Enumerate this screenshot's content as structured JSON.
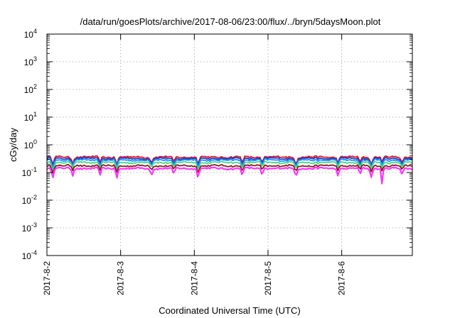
{
  "chart_data": {
    "type": "line",
    "title": "/data/run/goesPlots/archive/2017-08-06/23:00/flux/../bryn/5daysMoon.plot",
    "xlabel": "Coordinated Universal Time (UTC)",
    "ylabel": "cGy/day",
    "y_scale": "log",
    "ylim": [
      0.0001,
      10000
    ],
    "y_ticks": [
      {
        "exp": "-4",
        "value": 0.0001
      },
      {
        "exp": "-3",
        "value": 0.001
      },
      {
        "exp": "-2",
        "value": 0.01
      },
      {
        "exp": "-1",
        "value": 0.1
      },
      {
        "exp": "0",
        "value": 1
      },
      {
        "exp": "1",
        "value": 10
      },
      {
        "exp": "2",
        "value": 100
      },
      {
        "exp": "3",
        "value": 1000
      },
      {
        "exp": "4",
        "value": 10000
      }
    ],
    "y_tick_base": "10",
    "x_ticks": [
      "2017-8-2",
      "2017-8-3",
      "2017-8-4",
      "2017-8-5",
      "2017-8-6"
    ],
    "xlim": [
      "2017-8-2 00:00",
      "2017-8-6 23:00"
    ],
    "grid": true,
    "series": [
      {
        "color": "#e8131c",
        "base": 0.36,
        "dip": 0.62
      },
      {
        "color": "#1a3fd1",
        "base": 0.32,
        "dip": 0.6
      },
      {
        "color": "#1e90ff",
        "base": 0.28,
        "dip": 0.58
      },
      {
        "color": "#3ddc84",
        "base": 0.23,
        "dip": 0.62
      },
      {
        "color": "#8b1a1a",
        "base": 0.175,
        "dip": 0.68
      },
      {
        "color": "#ff33ff",
        "base": 0.14,
        "dip": 0.55
      }
    ],
    "dip_days": [
      0.08,
      0.35,
      0.72,
      0.95,
      1.42,
      1.72,
      2.05,
      2.65,
      2.92,
      3.38,
      3.95,
      4.25,
      4.4,
      4.55,
      4.82
    ]
  }
}
